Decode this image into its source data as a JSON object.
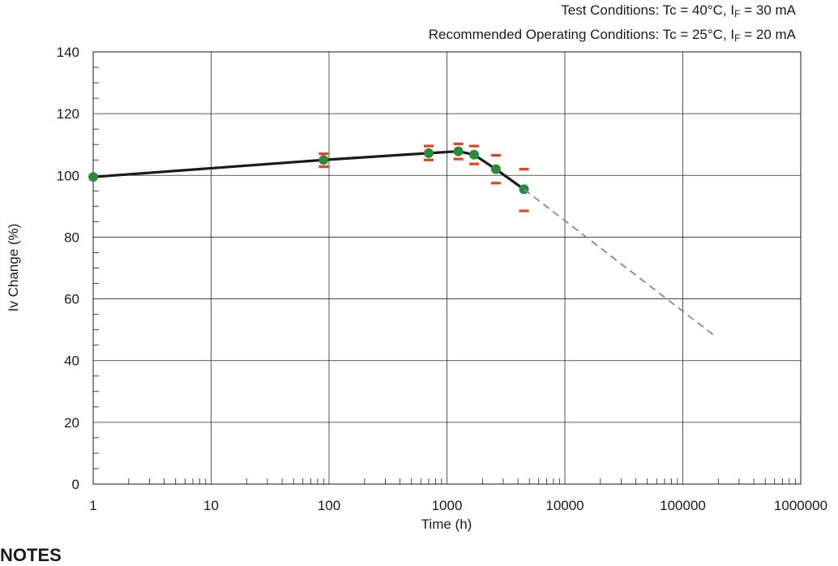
{
  "conditions": {
    "test": {
      "prefix": "Test Conditions: Tc = 40°C, I",
      "sub": "F",
      "suffix": " = 30 mA"
    },
    "recommended": {
      "prefix": "Recommended Operating Conditions: Tc = 25°C, I",
      "sub": "F",
      "suffix": " = 20 mA"
    }
  },
  "notes_heading": "NOTES",
  "chart_data": {
    "type": "line",
    "title": "",
    "xlabel": "Time (h)",
    "ylabel": "Iv Change (%)",
    "xscale": "log",
    "xlim": [
      1,
      1000000
    ],
    "ylim": [
      0,
      140
    ],
    "x_ticks": [
      "1",
      "10",
      "100",
      "1000",
      "10000",
      "100000",
      "1000000"
    ],
    "y_ticks": [
      "0",
      "20",
      "40",
      "60",
      "80",
      "100",
      "120",
      "140"
    ],
    "grid": true,
    "legend": "none",
    "series": [
      {
        "style": "solid",
        "color": "#1a1a1a",
        "marker_color": "#2a8a3e",
        "x": [
          1,
          90,
          700,
          1250,
          1700,
          2600,
          4500
        ],
        "y": [
          99.5,
          105,
          107.2,
          107.8,
          106.7,
          102,
          95.5
        ],
        "error_high": [
          null,
          107,
          109.5,
          110.2,
          109.5,
          106.5,
          102
        ],
        "error_low": [
          null,
          102.8,
          105,
          105.3,
          103.7,
          97.5,
          88.5
        ],
        "error_color": "#e8401c"
      },
      {
        "style": "dashed",
        "color": "#888888",
        "x": [
          4500,
          180000
        ],
        "y": [
          95.5,
          48.5
        ]
      }
    ]
  }
}
